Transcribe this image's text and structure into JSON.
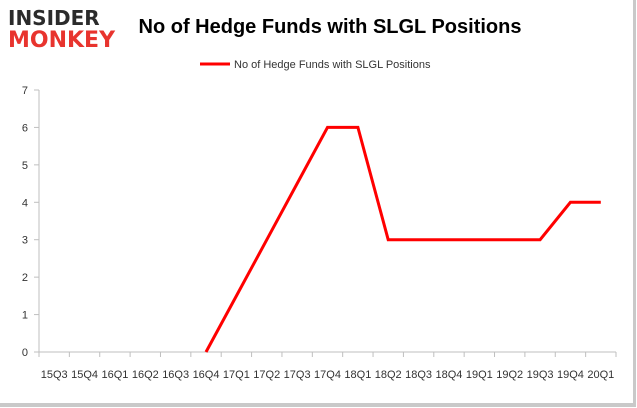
{
  "brand": {
    "logo_top": "INSIDER",
    "logo_bottom": "MONKEY"
  },
  "chart_data": {
    "type": "line",
    "title": "No of Hedge Funds with SLGL Positions",
    "xlabel": "",
    "ylabel": "",
    "ylim": [
      0,
      7
    ],
    "yticks": [
      0,
      1,
      2,
      3,
      4,
      5,
      6,
      7
    ],
    "grid": false,
    "legend_position": "top",
    "categories": [
      "15Q3",
      "15Q4",
      "16Q1",
      "16Q2",
      "16Q3",
      "16Q4",
      "17Q1",
      "17Q2",
      "17Q3",
      "17Q4",
      "18Q1",
      "18Q2",
      "18Q3",
      "18Q4",
      "19Q1",
      "19Q2",
      "19Q3",
      "19Q4",
      "20Q1"
    ],
    "series": [
      {
        "name": "No of Hedge Funds with SLGL Positions",
        "color": "#ff0000",
        "values": [
          null,
          null,
          null,
          null,
          null,
          0,
          1.5,
          3,
          4.5,
          6,
          6,
          3,
          3,
          3,
          3,
          3,
          3,
          4,
          4
        ]
      }
    ]
  }
}
